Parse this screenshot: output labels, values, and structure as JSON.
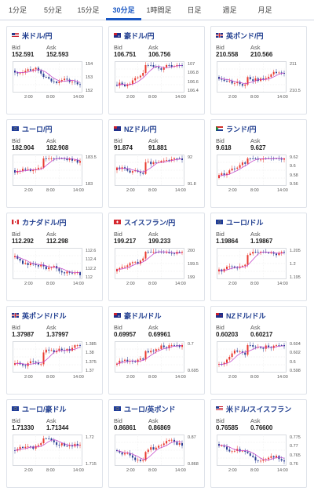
{
  "tabs": [
    {
      "label": "1分足",
      "active": false
    },
    {
      "label": "5分足",
      "active": false
    },
    {
      "label": "15分足",
      "active": false
    },
    {
      "label": "30分足",
      "active": true
    },
    {
      "label": "1時間足",
      "active": false
    },
    {
      "label": "日足",
      "active": false
    },
    {
      "label": "週足",
      "active": false
    },
    {
      "label": "月足",
      "active": false
    }
  ],
  "common": {
    "bid_label": "Bid",
    "ask_label": "Ask"
  },
  "colors": {
    "up": "#e8392e",
    "down": "#2c3f94",
    "ma": "#c13bc6",
    "link": "#1f3d8f"
  },
  "cards": [
    {
      "name": "米ドル/円",
      "flag": "flag-us",
      "bid": "152.591",
      "ask": "152.593",
      "ticks": [
        "154",
        "153",
        "152"
      ],
      "times": [
        "2:00",
        "8:00",
        "14:00"
      ],
      "trend": "down"
    },
    {
      "name": "豪ドル/円",
      "flag": "flag-au",
      "bid": "106.751",
      "ask": "106.756",
      "ticks": [
        "107",
        "106.8",
        "106.6",
        "106.4"
      ],
      "times": [
        "2:00",
        "8:00",
        "14:00"
      ],
      "trend": "up"
    },
    {
      "name": "英ポンド/円",
      "flag": "flag-gb",
      "bid": "210.558",
      "ask": "210.566",
      "ticks": [
        "211",
        "210.5"
      ],
      "times": [
        "2:00",
        "8:00",
        "14:00"
      ],
      "trend": "flat"
    },
    {
      "name": "ユーロ/円",
      "flag": "flag-eu",
      "bid": "182.904",
      "ask": "182.908",
      "ticks": [
        "183.5",
        "183"
      ],
      "times": [
        "2:00",
        "8:00",
        "14:00"
      ],
      "trend": "flat"
    },
    {
      "name": "NZドル/円",
      "flag": "flag-nz",
      "bid": "91.874",
      "ask": "91.881",
      "ticks": [
        "92",
        "91.8"
      ],
      "times": [
        "2:00",
        "8:00",
        "14:00"
      ],
      "trend": "flat"
    },
    {
      "name": "ランド/円",
      "flag": "flag-za",
      "bid": "9.618",
      "ask": "9.627",
      "ticks": [
        "9.62",
        "9.6",
        "9.58",
        "9.56"
      ],
      "times": [
        "2:00",
        "8:00",
        "14:00"
      ],
      "trend": "up"
    },
    {
      "name": "カナダドル/円",
      "flag": "flag-ca",
      "bid": "112.292",
      "ask": "112.298",
      "ticks": [
        "112.6",
        "112.4",
        "112.2",
        "112"
      ],
      "times": [
        "2:00",
        "8:00",
        "14:00"
      ],
      "trend": "down"
    },
    {
      "name": "スイスフラン/円",
      "flag": "flag-ch",
      "bid": "199.217",
      "ask": "199.233",
      "ticks": [
        "200",
        "199.5",
        "199"
      ],
      "times": [
        "2:00",
        "8:00",
        "14:00"
      ],
      "trend": "up"
    },
    {
      "name": "ユーロ/ドル",
      "flag": "flag-eu",
      "bid": "1.19864",
      "ask": "1.19867",
      "ticks": [
        "1.205",
        "1.2",
        "1.195"
      ],
      "times": [
        "2:00",
        "8:00",
        "14:00"
      ],
      "trend": "up"
    },
    {
      "name": "英ポンド/ドル",
      "flag": "flag-gb",
      "bid": "1.37987",
      "ask": "1.37997",
      "ticks": [
        "1.385",
        "1.38",
        "1.375",
        "1.37"
      ],
      "times": [
        "2:00",
        "8:00",
        "14:00"
      ],
      "trend": "up"
    },
    {
      "name": "豪ドル/ドル",
      "flag": "flag-au",
      "bid": "0.69957",
      "ask": "0.69961",
      "ticks": [
        "0.7",
        "0.695"
      ],
      "times": [
        "2:00",
        "8:00",
        "14:00"
      ],
      "trend": "up"
    },
    {
      "name": "NZドル/ドル",
      "flag": "flag-nz",
      "bid": "0.60203",
      "ask": "0.60217",
      "ticks": [
        "0.604",
        "0.602",
        "0.6",
        "0.598"
      ],
      "times": [
        "2:00",
        "8:00",
        "14:00"
      ],
      "trend": "up"
    },
    {
      "name": "ユーロ/豪ドル",
      "flag": "flag-eu",
      "bid": "1.71330",
      "ask": "1.71344",
      "ticks": [
        "1.72",
        "1.715"
      ],
      "times": [
        "2:00",
        "8:00",
        "14:00"
      ],
      "trend": "flat"
    },
    {
      "name": "ユーロ/英ポンド",
      "flag": "flag-eu",
      "bid": "0.86861",
      "ask": "0.86869",
      "ticks": [
        "0.87",
        "0.868"
      ],
      "times": [
        "2:00",
        "8:00",
        "14:00"
      ],
      "trend": "flat"
    },
    {
      "name": "米ドル/スイスフラン",
      "flag": "flag-us",
      "bid": "0.76585",
      "ask": "0.76600",
      "ticks": [
        "0.775",
        "0.77",
        "0.765",
        "0.76"
      ],
      "times": [
        "2:00",
        "8:00",
        "14:00"
      ],
      "trend": "down"
    }
  ]
}
